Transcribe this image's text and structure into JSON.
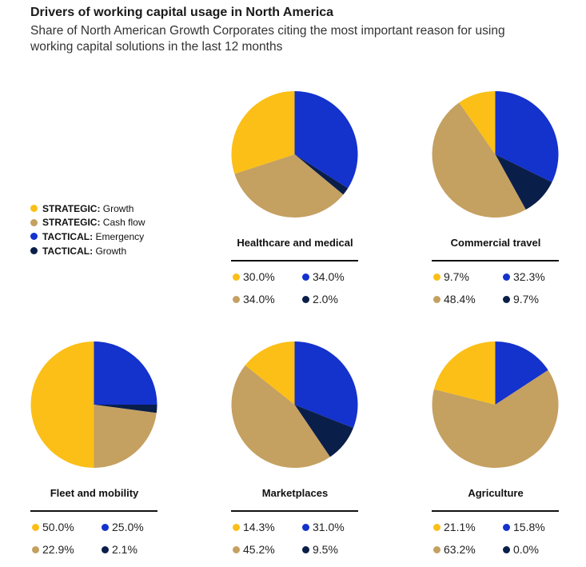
{
  "header": {
    "title": "Drivers of working capital usage in North America",
    "subtitle": "Share of North American Growth Corporates citing the most important reason for using working capital solutions in the last 12 months"
  },
  "chart_data": {
    "type": "pie",
    "title": "Drivers of working capital usage in North America",
    "legend": [
      {
        "prefix": "STRATEGIC:",
        "label": "Growth",
        "color": "#FBBF17"
      },
      {
        "prefix": "STRATEGIC:",
        "label": "Cash flow",
        "color": "#C4A061"
      },
      {
        "prefix": "TACTICAL:",
        "label": "Emergency",
        "color": "#1432CC"
      },
      {
        "prefix": "TACTICAL:",
        "label": "Growth",
        "color": "#0A1E4A"
      }
    ],
    "legend_placement": "left",
    "series_order": [
      "STRATEGIC: Growth",
      "STRATEGIC: Cash flow",
      "TACTICAL: Emergency",
      "TACTICAL: Growth"
    ],
    "charts": [
      {
        "name": "Healthcare and medical",
        "values": [
          30.0,
          34.0,
          34.0,
          2.0
        ],
        "labels": [
          "30.0%",
          "34.0%",
          "34.0%",
          "2.0%"
        ]
      },
      {
        "name": "Commercial travel",
        "values": [
          9.7,
          48.4,
          32.3,
          9.7
        ],
        "labels": [
          "9.7%",
          "48.4%",
          "32.3%",
          "9.7%"
        ]
      },
      {
        "name": "Fleet and mobility",
        "values": [
          50.0,
          22.9,
          25.0,
          2.1
        ],
        "labels": [
          "50.0%",
          "22.9%",
          "25.0%",
          "2.1%"
        ]
      },
      {
        "name": "Marketplaces",
        "values": [
          14.3,
          45.2,
          31.0,
          9.5
        ],
        "labels": [
          "14.3%",
          "45.2%",
          "31.0%",
          "9.5%"
        ]
      },
      {
        "name": "Agriculture",
        "values": [
          21.1,
          63.2,
          15.8,
          0.0
        ],
        "labels": [
          "21.1%",
          "63.2%",
          "15.8%",
          "0.0%"
        ]
      }
    ]
  }
}
